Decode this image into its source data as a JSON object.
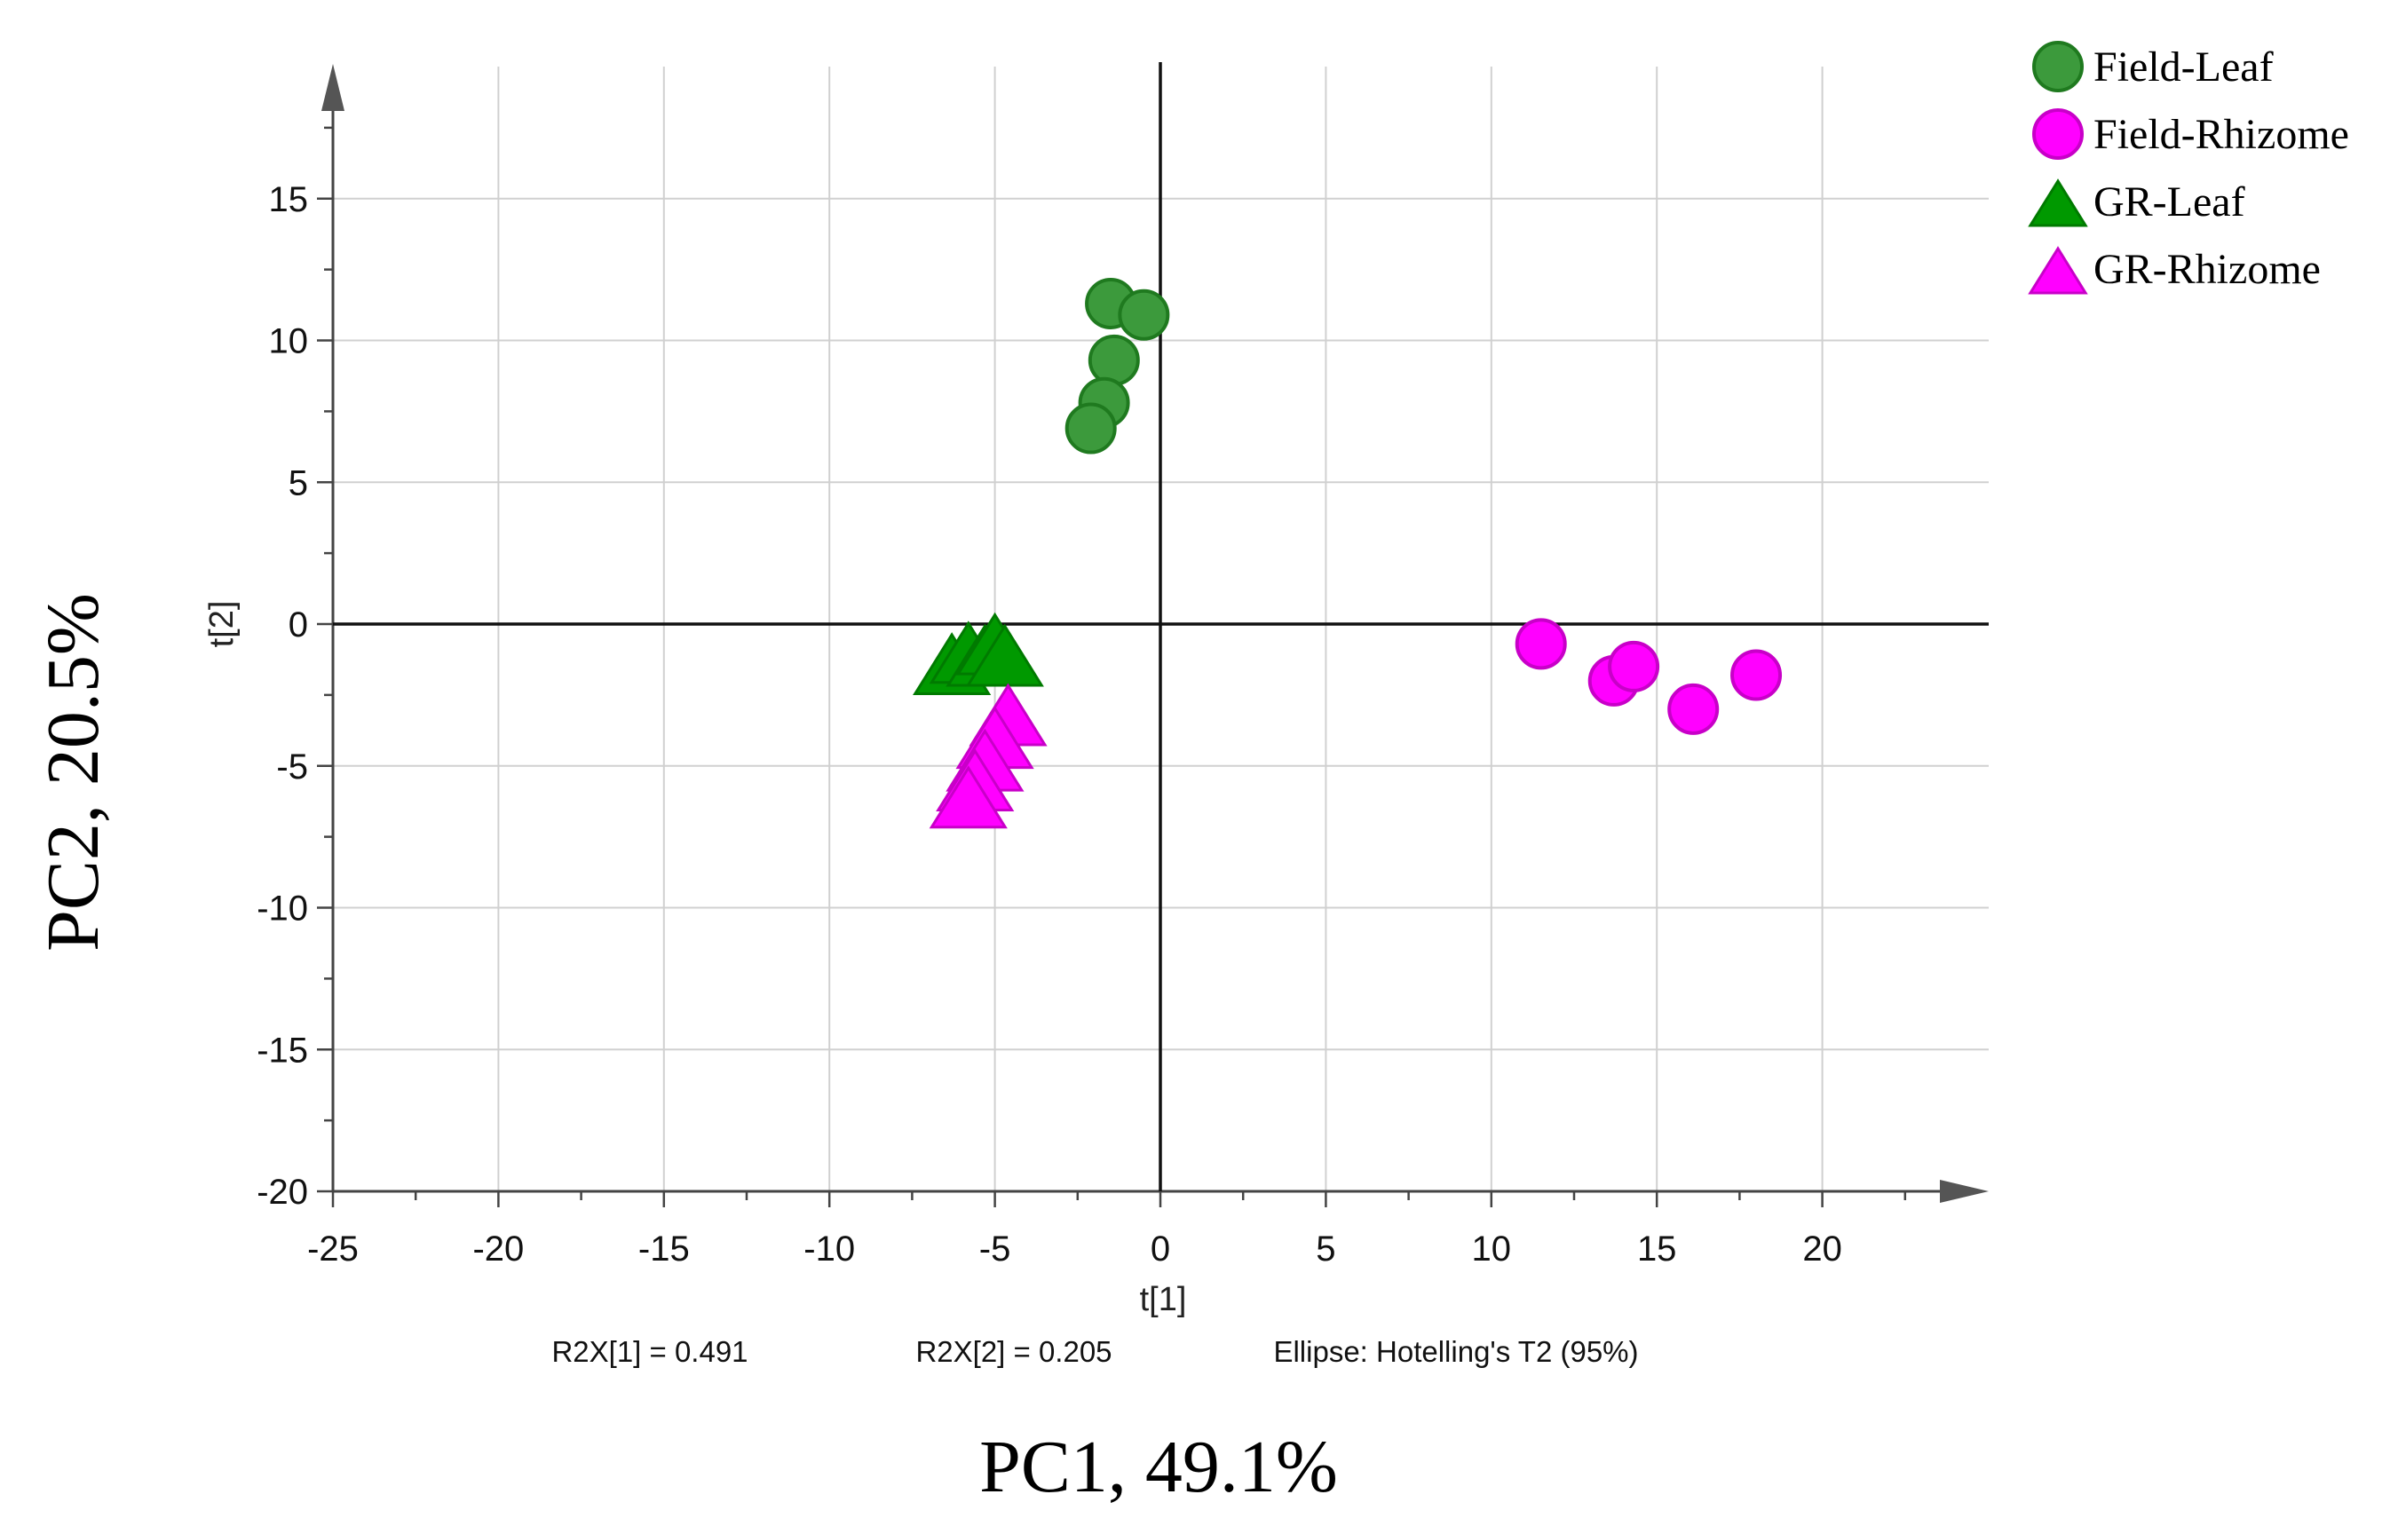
{
  "chart_data": {
    "type": "scatter",
    "x_axis": {
      "label": "t[1]",
      "range": [
        -25,
        25
      ],
      "ticks": [
        -25,
        -20,
        -15,
        -10,
        -5,
        0,
        5,
        10,
        15,
        20
      ]
    },
    "y_axis": {
      "label": "t[2]",
      "range": [
        -20,
        20
      ],
      "ticks": [
        -20,
        -15,
        -10,
        -5,
        0,
        5,
        10,
        15
      ]
    },
    "grid": true,
    "legend_position": "top-right",
    "outer_xlabel": "PC1, 49.1%",
    "outer_ylabel": "PC2, 20.5%",
    "footer": {
      "r2x1": "R2X[1] = 0.491",
      "r2x2": "R2X[2] = 0.205",
      "ellipse": "Ellipse: Hotelling's T2 (95%)"
    },
    "series": [
      {
        "name": "Field-Leaf",
        "marker": "circle",
        "color": "#3c9a3c",
        "stroke": "#1f7a1f",
        "points": [
          [
            -1.5,
            11.3
          ],
          [
            -0.5,
            10.9
          ],
          [
            -1.4,
            9.3
          ],
          [
            -1.7,
            7.8
          ],
          [
            -2.1,
            6.9
          ]
        ]
      },
      {
        "name": "Field-Rhizome",
        "marker": "circle",
        "color": "#ff00ff",
        "stroke": "#c800c8",
        "points": [
          [
            11.5,
            -0.7
          ],
          [
            13.7,
            -2.0
          ],
          [
            14.3,
            -1.5
          ],
          [
            16.1,
            -3.0
          ],
          [
            18.0,
            -1.8
          ]
        ]
      },
      {
        "name": "GR-Leaf",
        "marker": "triangle",
        "color": "#009900",
        "stroke": "#007a00",
        "points": [
          [
            -6.3,
            -1.5
          ],
          [
            -5.8,
            -1.1
          ],
          [
            -5.3,
            -1.2
          ],
          [
            -5.0,
            -0.8
          ],
          [
            -4.7,
            -1.2
          ]
        ]
      },
      {
        "name": "GR-Rhizome",
        "marker": "triangle",
        "color": "#ff00ff",
        "stroke": "#c800c8",
        "points": [
          [
            -4.6,
            -3.3
          ],
          [
            -5.0,
            -4.1
          ],
          [
            -5.3,
            -4.9
          ],
          [
            -5.6,
            -5.6
          ],
          [
            -5.8,
            -6.2
          ]
        ]
      }
    ]
  }
}
